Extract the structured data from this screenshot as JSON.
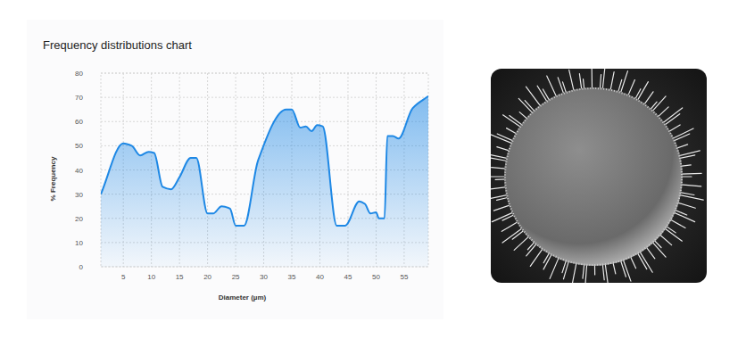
{
  "chart_data": {
    "type": "area",
    "title": "Frequency distributions chart",
    "x_label": "Diameter (µm)",
    "y_label": "% Frequency",
    "x": [
      1,
      5,
      6.5,
      8,
      9.5,
      10.5,
      12,
      13.5,
      15,
      17,
      18,
      20,
      21,
      22.5,
      24,
      25,
      26.5,
      29,
      34,
      35,
      36.5,
      37.5,
      38.5,
      39.5,
      40.5,
      43,
      44.5,
      47,
      48,
      49,
      50,
      50.5,
      51.5,
      52,
      53,
      54,
      56.5,
      59.3
    ],
    "values": [
      30,
      51,
      50,
      46,
      47.5,
      47,
      33,
      32,
      37,
      45,
      45,
      22,
      22,
      25,
      24,
      17,
      17,
      44,
      65,
      65,
      57.5,
      58,
      56,
      58.5,
      58,
      17,
      17,
      27,
      26,
      22,
      22.5,
      20,
      20,
      54,
      54,
      53,
      65.5,
      70.5
    ],
    "color": "#1e88e5",
    "xlim": [
      1,
      59.3
    ],
    "xticks": [
      5,
      10,
      15,
      20,
      25,
      30,
      35,
      40,
      45,
      50,
      55
    ],
    "ylim": [
      0,
      80
    ],
    "yticks": [
      0,
      10,
      20,
      30,
      40,
      50,
      60,
      70,
      80
    ],
    "grid": true
  }
}
